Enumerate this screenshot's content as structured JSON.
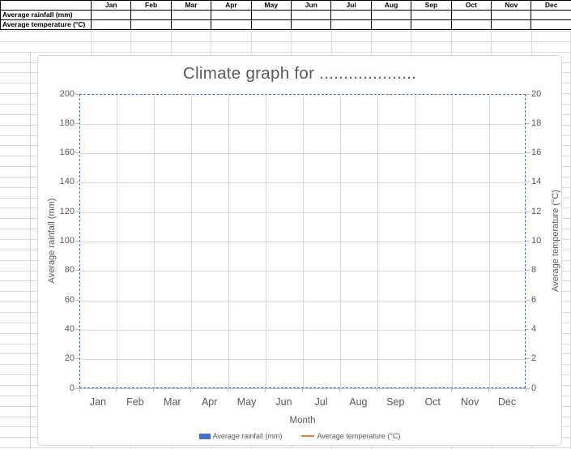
{
  "months": [
    "Jan",
    "Feb",
    "Mar",
    "Apr",
    "May",
    "Jun",
    "Jul",
    "Aug",
    "Sep",
    "Oct",
    "Nov",
    "Dec"
  ],
  "sheet": {
    "table": {
      "corner_label": "",
      "row_labels": [
        "Average rainfall (mm)",
        "Average temperature (°C)"
      ],
      "cell_values": [
        [
          "",
          "",
          "",
          "",
          "",
          "",
          "",
          "",
          "",
          "",
          "",
          ""
        ],
        [
          "",
          "",
          "",
          "",
          "",
          "",
          "",
          "",
          "",
          "",
          "",
          ""
        ]
      ]
    }
  },
  "chart": {
    "title": "Climate graph for ....................",
    "left_axis": {
      "title": "Average rainfall (mm)",
      "tick_labels": [
        "200",
        "180",
        "160",
        "140",
        "120",
        "100",
        "80",
        "60",
        "40",
        "20",
        "0"
      ]
    },
    "right_axis": {
      "title": "Average temperature (°C)",
      "tick_labels": [
        "20",
        "18",
        "16",
        "14",
        "12",
        "10",
        "8",
        "6",
        "4",
        "2",
        "0"
      ]
    },
    "x_axis": {
      "title": "Month"
    },
    "legend": [
      {
        "label": "Average rainfall (mm)",
        "color": "#4472C4",
        "marker": "bar"
      },
      {
        "label": "Average temperature (°C)",
        "color": "#ED7D31",
        "marker": "line"
      }
    ]
  },
  "chart_data": {
    "type": "combo",
    "categories": [
      "Jan",
      "Feb",
      "Mar",
      "Apr",
      "May",
      "Jun",
      "Jul",
      "Aug",
      "Sep",
      "Oct",
      "Nov",
      "Dec"
    ],
    "series": [
      {
        "name": "Average rainfall (mm)",
        "type": "bar",
        "axis": "left",
        "color": "#4472C4",
        "values": []
      },
      {
        "name": "Average temperature (°C)",
        "type": "line",
        "axis": "right",
        "color": "#ED7D31",
        "values": []
      }
    ],
    "title": "Climate graph for ....................",
    "xlabel": "Month",
    "ylabel_left": "Average rainfall (mm)",
    "ylabel_right": "Average temperature (°C)",
    "ylim_left": [
      0,
      200
    ],
    "ylim_right": [
      0,
      20
    ],
    "grid": true,
    "legend_position": "bottom"
  },
  "colors": {
    "accent_blue": "#4472C4",
    "accent_orange": "#ED7D31",
    "plot_border_dashed": "#4472C4",
    "gridline": "#D9D9D9",
    "axis_line": "#BFBFBF",
    "chart_text": "#595959",
    "sheet_gridline": "#DCDCDC",
    "table_border": "#000000"
  }
}
